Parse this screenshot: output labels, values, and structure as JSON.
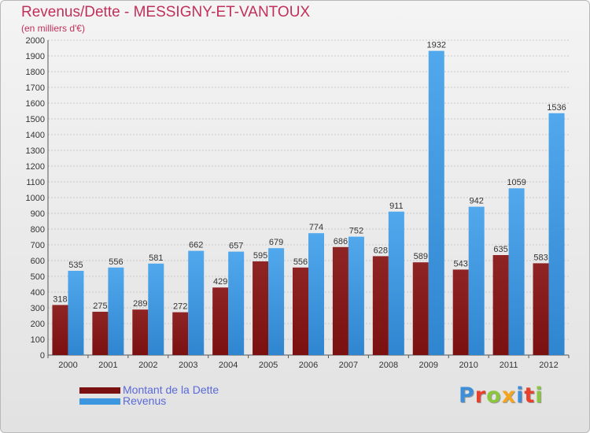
{
  "header": {
    "title": "Revenus/Dette - MESSIGNY-ET-VANTOUX",
    "subtitle": "(en milliers d'€)"
  },
  "colors": {
    "title": "#c0305a",
    "debt": "#7a1010",
    "revenue": "#3c96e0",
    "legend_text": "#5a6ad8"
  },
  "logo": {
    "text": "Proxiti",
    "letter_colors": [
      "#3e8fd8",
      "#e8402a",
      "#8cc63f",
      "#f3a51d",
      "#3e8fd8",
      "#e8402a",
      "#8cc63f"
    ]
  },
  "chart_data": {
    "type": "bar",
    "categories": [
      "2000",
      "2001",
      "2002",
      "2003",
      "2004",
      "2005",
      "2006",
      "2007",
      "2008",
      "2009",
      "2010",
      "2011",
      "2012"
    ],
    "series": [
      {
        "name": "Montant de la Dette",
        "values": [
          318,
          275,
          289,
          272,
          429,
          595,
          556,
          686,
          628,
          589,
          543,
          635,
          583
        ]
      },
      {
        "name": "Revenus",
        "values": [
          535,
          556,
          581,
          662,
          657,
          679,
          774,
          752,
          911,
          1932,
          942,
          1059,
          1536
        ]
      }
    ],
    "ylim": [
      0,
      2000
    ],
    "ytick_step": 100,
    "grid": true,
    "legend_position": "bottom-left"
  }
}
